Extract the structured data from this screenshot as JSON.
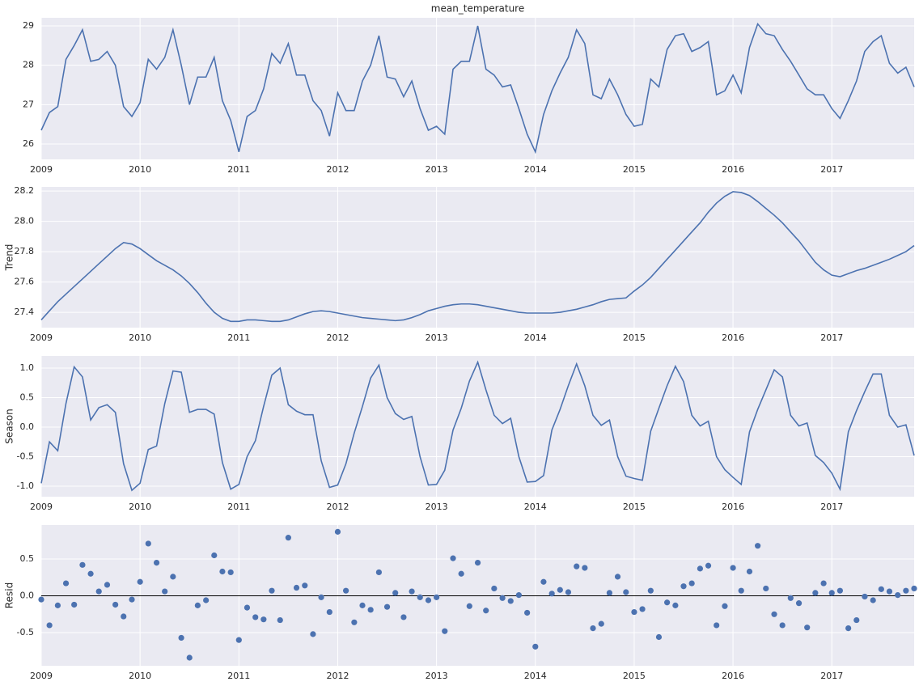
{
  "chart_data": [
    {
      "type": "line",
      "title": "mean_temperature",
      "color": "#4c72b0",
      "grid": true,
      "x": [
        2009,
        2009.083,
        2009.167,
        2009.25,
        2009.333,
        2009.417,
        2009.5,
        2009.583,
        2009.667,
        2009.75,
        2009.833,
        2009.917,
        2010,
        2010.083,
        2010.167,
        2010.25,
        2010.333,
        2010.417,
        2010.5,
        2010.583,
        2010.667,
        2010.75,
        2010.833,
        2010.917,
        2011,
        2011.083,
        2011.167,
        2011.25,
        2011.333,
        2011.417,
        2011.5,
        2011.583,
        2011.667,
        2011.75,
        2011.833,
        2011.917,
        2012,
        2012.083,
        2012.167,
        2012.25,
        2012.333,
        2012.417,
        2012.5,
        2012.583,
        2012.667,
        2012.75,
        2012.833,
        2012.917,
        2013,
        2013.083,
        2013.167,
        2013.25,
        2013.333,
        2013.417,
        2013.5,
        2013.583,
        2013.667,
        2013.75,
        2013.833,
        2013.917,
        2014,
        2014.083,
        2014.167,
        2014.25,
        2014.333,
        2014.417,
        2014.5,
        2014.583,
        2014.667,
        2014.75,
        2014.833,
        2014.917,
        2015,
        2015.083,
        2015.167,
        2015.25,
        2015.333,
        2015.417,
        2015.5,
        2015.583,
        2015.667,
        2015.75,
        2015.833,
        2015.917,
        2016,
        2016.083,
        2016.167,
        2016.25,
        2016.333,
        2016.417,
        2016.5,
        2016.583,
        2016.667,
        2016.75,
        2016.833,
        2016.917,
        2017,
        2017.083,
        2017.167,
        2017.25,
        2017.333,
        2017.417,
        2017.5,
        2017.583,
        2017.667,
        2017.75,
        2017.833
      ],
      "values": [
        26.35,
        26.8,
        26.95,
        28.15,
        28.5,
        28.9,
        28.1,
        28.15,
        28.35,
        28.0,
        26.95,
        26.7,
        27.05,
        28.15,
        27.9,
        28.2,
        28.9,
        28.0,
        27.0,
        27.7,
        27.7,
        28.2,
        27.1,
        26.6,
        25.8,
        26.7,
        26.85,
        27.4,
        28.3,
        28.05,
        28.55,
        27.75,
        27.75,
        27.1,
        26.85,
        26.2,
        27.3,
        26.85,
        26.85,
        27.6,
        28.0,
        28.75,
        27.7,
        27.65,
        27.2,
        27.6,
        26.9,
        26.35,
        26.45,
        26.25,
        27.9,
        28.1,
        28.1,
        29.0,
        27.9,
        27.75,
        27.45,
        27.5,
        26.9,
        26.25,
        25.8,
        26.75,
        27.35,
        27.8,
        28.2,
        28.9,
        28.55,
        27.25,
        27.15,
        27.65,
        27.25,
        26.75,
        26.45,
        26.5,
        27.65,
        27.45,
        28.4,
        28.75,
        28.8,
        28.35,
        28.45,
        28.6,
        27.25,
        27.35,
        27.75,
        27.3,
        28.45,
        29.05,
        28.8,
        28.75,
        28.4,
        28.1,
        27.75,
        27.4,
        27.25,
        27.25,
        26.9,
        26.65,
        27.1,
        27.6,
        28.35,
        28.6,
        28.75,
        28.05,
        27.8,
        27.95,
        27.45
      ],
      "xlim": [
        2009,
        2017.833
      ],
      "xticks": [
        2009,
        2010,
        2011,
        2012,
        2013,
        2014,
        2015,
        2016,
        2017
      ],
      "ylim": [
        25.61,
        29.205
      ],
      "yticks": [
        26,
        27,
        28,
        29
      ]
    },
    {
      "type": "line",
      "ylabel": "Trend",
      "color": "#4c72b0",
      "grid": true,
      "x": [
        2009,
        2009.083,
        2009.167,
        2009.25,
        2009.333,
        2009.417,
        2009.5,
        2009.583,
        2009.667,
        2009.75,
        2009.833,
        2009.917,
        2010,
        2010.083,
        2010.167,
        2010.25,
        2010.333,
        2010.417,
        2010.5,
        2010.583,
        2010.667,
        2010.75,
        2010.833,
        2010.917,
        2011,
        2011.083,
        2011.167,
        2011.25,
        2011.333,
        2011.417,
        2011.5,
        2011.583,
        2011.667,
        2011.75,
        2011.833,
        2011.917,
        2012,
        2012.083,
        2012.167,
        2012.25,
        2012.333,
        2012.417,
        2012.5,
        2012.583,
        2012.667,
        2012.75,
        2012.833,
        2012.917,
        2013,
        2013.083,
        2013.167,
        2013.25,
        2013.333,
        2013.417,
        2013.5,
        2013.583,
        2013.667,
        2013.75,
        2013.833,
        2013.917,
        2014,
        2014.083,
        2014.167,
        2014.25,
        2014.333,
        2014.417,
        2014.5,
        2014.583,
        2014.667,
        2014.75,
        2014.833,
        2014.917,
        2015,
        2015.083,
        2015.167,
        2015.25,
        2015.333,
        2015.417,
        2015.5,
        2015.583,
        2015.667,
        2015.75,
        2015.833,
        2015.917,
        2016,
        2016.083,
        2016.167,
        2016.25,
        2016.333,
        2016.417,
        2016.5,
        2016.583,
        2016.667,
        2016.75,
        2016.833,
        2016.917,
        2017,
        2017.083,
        2017.167,
        2017.25,
        2017.333,
        2017.417,
        2017.5,
        2017.583,
        2017.667,
        2017.75,
        2017.833
      ],
      "values": [
        27.35,
        27.41,
        27.47,
        27.52,
        27.57,
        27.62,
        27.67,
        27.72,
        27.77,
        27.82,
        27.86,
        27.85,
        27.82,
        27.78,
        27.74,
        27.71,
        27.68,
        27.64,
        27.59,
        27.53,
        27.46,
        27.4,
        27.36,
        27.34,
        27.34,
        27.35,
        27.35,
        27.345,
        27.34,
        27.34,
        27.35,
        27.37,
        27.39,
        27.405,
        27.41,
        27.405,
        27.395,
        27.385,
        27.375,
        27.365,
        27.36,
        27.355,
        27.35,
        27.345,
        27.35,
        27.365,
        27.385,
        27.41,
        27.425,
        27.44,
        27.45,
        27.455,
        27.455,
        27.45,
        27.44,
        27.43,
        27.42,
        27.41,
        27.4,
        27.395,
        27.395,
        27.395,
        27.395,
        27.4,
        27.41,
        27.42,
        27.435,
        27.45,
        27.47,
        27.485,
        27.49,
        27.495,
        27.54,
        27.58,
        27.63,
        27.69,
        27.75,
        27.81,
        27.87,
        27.93,
        27.99,
        28.06,
        28.12,
        28.165,
        28.195,
        28.19,
        28.17,
        28.13,
        28.085,
        28.04,
        27.99,
        27.93,
        27.87,
        27.8,
        27.73,
        27.68,
        27.645,
        27.635,
        27.655,
        27.675,
        27.69,
        27.71,
        27.73,
        27.75,
        27.775,
        27.8,
        27.84
      ],
      "xlim": [
        2009,
        2017.833
      ],
      "xticks": [
        2009,
        2010,
        2011,
        2012,
        2013,
        2014,
        2015,
        2016,
        2017
      ],
      "ylim": [
        27.299,
        28.227
      ],
      "yticks": [
        27.4,
        27.6,
        27.8,
        {
          "value": 28,
          "label": "28.0"
        },
        28.2
      ]
    },
    {
      "type": "line",
      "ylabel": "Season",
      "color": "#4c72b0",
      "grid": true,
      "x": [
        2009,
        2009.083,
        2009.167,
        2009.25,
        2009.333,
        2009.417,
        2009.5,
        2009.583,
        2009.667,
        2009.75,
        2009.833,
        2009.917,
        2010,
        2010.083,
        2010.167,
        2010.25,
        2010.333,
        2010.417,
        2010.5,
        2010.583,
        2010.667,
        2010.75,
        2010.833,
        2010.917,
        2011,
        2011.083,
        2011.167,
        2011.25,
        2011.333,
        2011.417,
        2011.5,
        2011.583,
        2011.667,
        2011.75,
        2011.833,
        2011.917,
        2012,
        2012.083,
        2012.167,
        2012.25,
        2012.333,
        2012.417,
        2012.5,
        2012.583,
        2012.667,
        2012.75,
        2012.833,
        2012.917,
        2013,
        2013.083,
        2013.167,
        2013.25,
        2013.333,
        2013.417,
        2013.5,
        2013.583,
        2013.667,
        2013.75,
        2013.833,
        2013.917,
        2014,
        2014.083,
        2014.167,
        2014.25,
        2014.333,
        2014.417,
        2014.5,
        2014.583,
        2014.667,
        2014.75,
        2014.833,
        2014.917,
        2015,
        2015.083,
        2015.167,
        2015.25,
        2015.333,
        2015.417,
        2015.5,
        2015.583,
        2015.667,
        2015.75,
        2015.833,
        2015.917,
        2016,
        2016.083,
        2016.167,
        2016.25,
        2016.333,
        2016.417,
        2016.5,
        2016.583,
        2016.667,
        2016.75,
        2016.833,
        2016.917,
        2017,
        2017.083,
        2017.167,
        2017.25,
        2017.333,
        2017.417,
        2017.5,
        2017.583,
        2017.667,
        2017.75,
        2017.833
      ],
      "values": [
        -0.95,
        -0.25,
        -0.4,
        0.4,
        1.02,
        0.85,
        0.12,
        0.33,
        0.38,
        0.25,
        -0.62,
        -1.07,
        -0.95,
        -0.38,
        -0.32,
        0.4,
        0.95,
        0.93,
        0.25,
        0.3,
        0.3,
        0.22,
        -0.6,
        -1.05,
        -0.97,
        -0.5,
        -0.23,
        0.35,
        0.88,
        1.0,
        0.38,
        0.27,
        0.21,
        0.21,
        -0.57,
        -1.02,
        -0.98,
        -0.62,
        -0.1,
        0.35,
        0.83,
        1.05,
        0.5,
        0.23,
        0.13,
        0.18,
        -0.5,
        -0.98,
        -0.97,
        -0.73,
        -0.05,
        0.32,
        0.78,
        1.1,
        0.63,
        0.2,
        0.06,
        0.15,
        -0.5,
        -0.93,
        -0.92,
        -0.82,
        -0.05,
        0.3,
        0.7,
        1.07,
        0.7,
        0.2,
        0.03,
        0.12,
        -0.5,
        -0.83,
        -0.87,
        -0.9,
        -0.07,
        0.32,
        0.7,
        1.03,
        0.77,
        0.2,
        0.02,
        0.1,
        -0.5,
        -0.72,
        -0.85,
        -0.97,
        -0.08,
        0.3,
        0.63,
        0.97,
        0.85,
        0.2,
        0.02,
        0.07,
        -0.48,
        -0.6,
        -0.78,
        -1.05,
        -0.08,
        0.28,
        0.6,
        0.9,
        0.9,
        0.2,
        0.0,
        0.04,
        -0.48
      ],
      "xlim": [
        2009,
        2017.833
      ],
      "xticks": [
        2009,
        2010,
        2011,
        2012,
        2013,
        2014,
        2015,
        2016,
        2017
      ],
      "ylim": [
        -1.178,
        1.205
      ],
      "yticks": [
        {
          "value": -1,
          "label": "-1.0"
        },
        -0.5,
        {
          "value": 0,
          "label": "0.0"
        },
        0.5,
        {
          "value": 1,
          "label": "1.0"
        }
      ]
    },
    {
      "type": "scatter",
      "ylabel": "Resid",
      "color": "#4c72b0",
      "grid": true,
      "hline": 0,
      "x": [
        2009,
        2009.083,
        2009.167,
        2009.25,
        2009.333,
        2009.417,
        2009.5,
        2009.583,
        2009.667,
        2009.75,
        2009.833,
        2009.917,
        2010,
        2010.083,
        2010.167,
        2010.25,
        2010.333,
        2010.417,
        2010.5,
        2010.583,
        2010.667,
        2010.75,
        2010.833,
        2010.917,
        2011,
        2011.083,
        2011.167,
        2011.25,
        2011.333,
        2011.417,
        2011.5,
        2011.583,
        2011.667,
        2011.75,
        2011.833,
        2011.917,
        2012,
        2012.083,
        2012.167,
        2012.25,
        2012.333,
        2012.417,
        2012.5,
        2012.583,
        2012.667,
        2012.75,
        2012.833,
        2012.917,
        2013,
        2013.083,
        2013.167,
        2013.25,
        2013.333,
        2013.417,
        2013.5,
        2013.583,
        2013.667,
        2013.75,
        2013.833,
        2013.917,
        2014,
        2014.083,
        2014.167,
        2014.25,
        2014.333,
        2014.417,
        2014.5,
        2014.583,
        2014.667,
        2014.75,
        2014.833,
        2014.917,
        2015,
        2015.083,
        2015.167,
        2015.25,
        2015.333,
        2015.417,
        2015.5,
        2015.583,
        2015.667,
        2015.75,
        2015.833,
        2015.917,
        2016,
        2016.083,
        2016.167,
        2016.25,
        2016.333,
        2016.417,
        2016.5,
        2016.583,
        2016.667,
        2016.75,
        2016.833,
        2016.917,
        2017,
        2017.083,
        2017.167,
        2017.25,
        2017.333,
        2017.417,
        2017.5,
        2017.583,
        2017.667,
        2017.75,
        2017.833
      ],
      "values": [
        -0.05,
        -0.4,
        -0.13,
        0.17,
        -0.12,
        0.42,
        0.3,
        0.06,
        0.15,
        -0.12,
        -0.28,
        -0.05,
        0.19,
        0.71,
        0.45,
        0.06,
        0.26,
        -0.57,
        -0.84,
        -0.13,
        -0.06,
        0.55,
        0.33,
        0.32,
        -0.6,
        -0.16,
        -0.29,
        -0.32,
        0.07,
        -0.33,
        0.79,
        0.11,
        0.14,
        -0.52,
        -0.02,
        -0.22,
        0.87,
        0.07,
        -0.36,
        -0.13,
        -0.19,
        0.32,
        -0.15,
        0.04,
        -0.29,
        0.06,
        -0.02,
        -0.06,
        -0.02,
        -0.48,
        0.51,
        0.3,
        -0.14,
        0.45,
        -0.2,
        0.1,
        -0.03,
        -0.07,
        0.01,
        -0.23,
        -0.69,
        0.19,
        0.03,
        0.08,
        0.05,
        0.4,
        0.38,
        -0.44,
        -0.38,
        0.04,
        0.26,
        0.05,
        -0.22,
        -0.18,
        0.07,
        -0.56,
        -0.09,
        -0.13,
        0.13,
        0.17,
        0.37,
        0.41,
        -0.4,
        -0.14,
        0.38,
        0.07,
        0.33,
        0.68,
        0.1,
        -0.25,
        -0.4,
        -0.03,
        -0.1,
        -0.43,
        0.04,
        0.17,
        0.04,
        0.07,
        -0.44,
        -0.33,
        -0.01,
        -0.06,
        0.09,
        0.06,
        0.01,
        0.07,
        0.1
      ],
      "xlim": [
        2009,
        2017.833
      ],
      "xticks": [
        2009,
        2010,
        2011,
        2012,
        2013,
        2014,
        2015,
        2016,
        2017
      ],
      "ylim": [
        -0.95,
        0.962
      ],
      "yticks": [
        -0.5,
        {
          "value": 0,
          "label": "0.0"
        },
        0.5
      ]
    }
  ]
}
